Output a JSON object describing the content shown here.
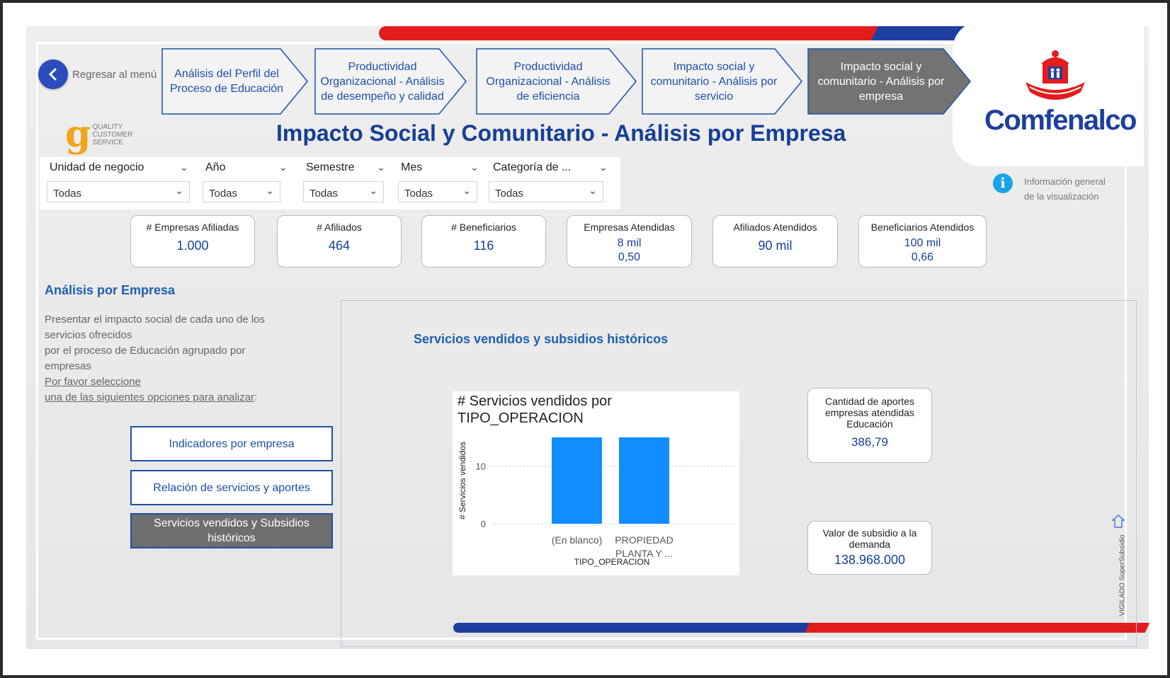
{
  "back": {
    "label": "Regresar al menú"
  },
  "nav": [
    {
      "label": "Análisis del Perfil del Proceso de Educación",
      "active": false
    },
    {
      "label": "Productividad Organizacional - Análisis de desempeño y calidad",
      "active": false
    },
    {
      "label": "Productividad Organizacional - Análisis de eficiencia",
      "active": false
    },
    {
      "label": "Impacto social y comunitario - Análisis por servicio",
      "active": false
    },
    {
      "label": "Impacto social y comunitario - Análisis por empresa",
      "active": true
    }
  ],
  "quality_logo": {
    "mark": "g",
    "text": [
      "QUALITY",
      "CUSTOMER",
      "SERVICE"
    ]
  },
  "page_title": "Impacto Social y Comunitario - Análisis por Empresa",
  "brand": {
    "name": "Comfenalco",
    "color": "#1e3fa0",
    "accent": "#e31d1d"
  },
  "filters": [
    {
      "label": "Unidad de negocio",
      "value": "Todas"
    },
    {
      "label": "Año",
      "value": "Todas"
    },
    {
      "label": "Semestre",
      "value": "Todas"
    },
    {
      "label": "Mes",
      "value": "Todas"
    },
    {
      "label": "Categoría de ...",
      "value": "Todas"
    }
  ],
  "info": {
    "icon": "info-icon",
    "line1": "Información general",
    "line2": "de la visualización"
  },
  "kpis": [
    {
      "label": "# Empresas Afiliadas",
      "value": "1.000"
    },
    {
      "label": "# Afiliados",
      "value": "464"
    },
    {
      "label": "# Beneficiarios",
      "value": "116"
    },
    {
      "label": "Empresas Atendidas",
      "value": "8 mil",
      "value2": "0,50"
    },
    {
      "label": "Afiliados Atendidos",
      "value": "90 mil"
    },
    {
      "label": "Beneficiarios Atendidos",
      "value": "100 mil",
      "value2": "0,66"
    }
  ],
  "section": {
    "title": "Análisis por Empresa",
    "desc_lines": [
      "Presentar el impacto social de cada uno de los",
      "servicios ofrecidos",
      "por el proceso de Educación agrupado por",
      "empresas"
    ],
    "link1": "Por favor seleccione",
    "link2": "una de las siguientes opciones para analizar",
    "colon": ":"
  },
  "buttons": [
    {
      "label": "Indicadores por empresa",
      "active": false
    },
    {
      "label": "Relación de servicios y aportes",
      "active": false
    },
    {
      "label": "Servicios vendidos y Subsidios históricos",
      "active": true
    }
  ],
  "panel_title": "Servicios vendidos y subsidios históricos",
  "chart_data": {
    "type": "bar",
    "title": "# Servicios vendidos por TIPO_OPERACION",
    "xlabel": "TIPO_OPERACION",
    "ylabel": "# Servicios vendidos",
    "categories": [
      "(En blanco)",
      "PROPIEDAD PLANTA Y ..."
    ],
    "category_lines": [
      [
        "(En blanco)"
      ],
      [
        "PROPIEDAD",
        "PLANTA Y ..."
      ]
    ],
    "values": [
      15,
      15
    ],
    "yticks": [
      0,
      10
    ],
    "ylim": [
      0,
      15
    ],
    "grid": true,
    "color": "#118dff"
  },
  "cards": [
    {
      "label": "Cantidad de aportes empresas atendidas Educación",
      "value": "386,79"
    },
    {
      "label": "Valor de subsidio a la demanda",
      "value": "138.968.000"
    }
  ],
  "vigilado": "VIGILADO SuperSubsidio"
}
